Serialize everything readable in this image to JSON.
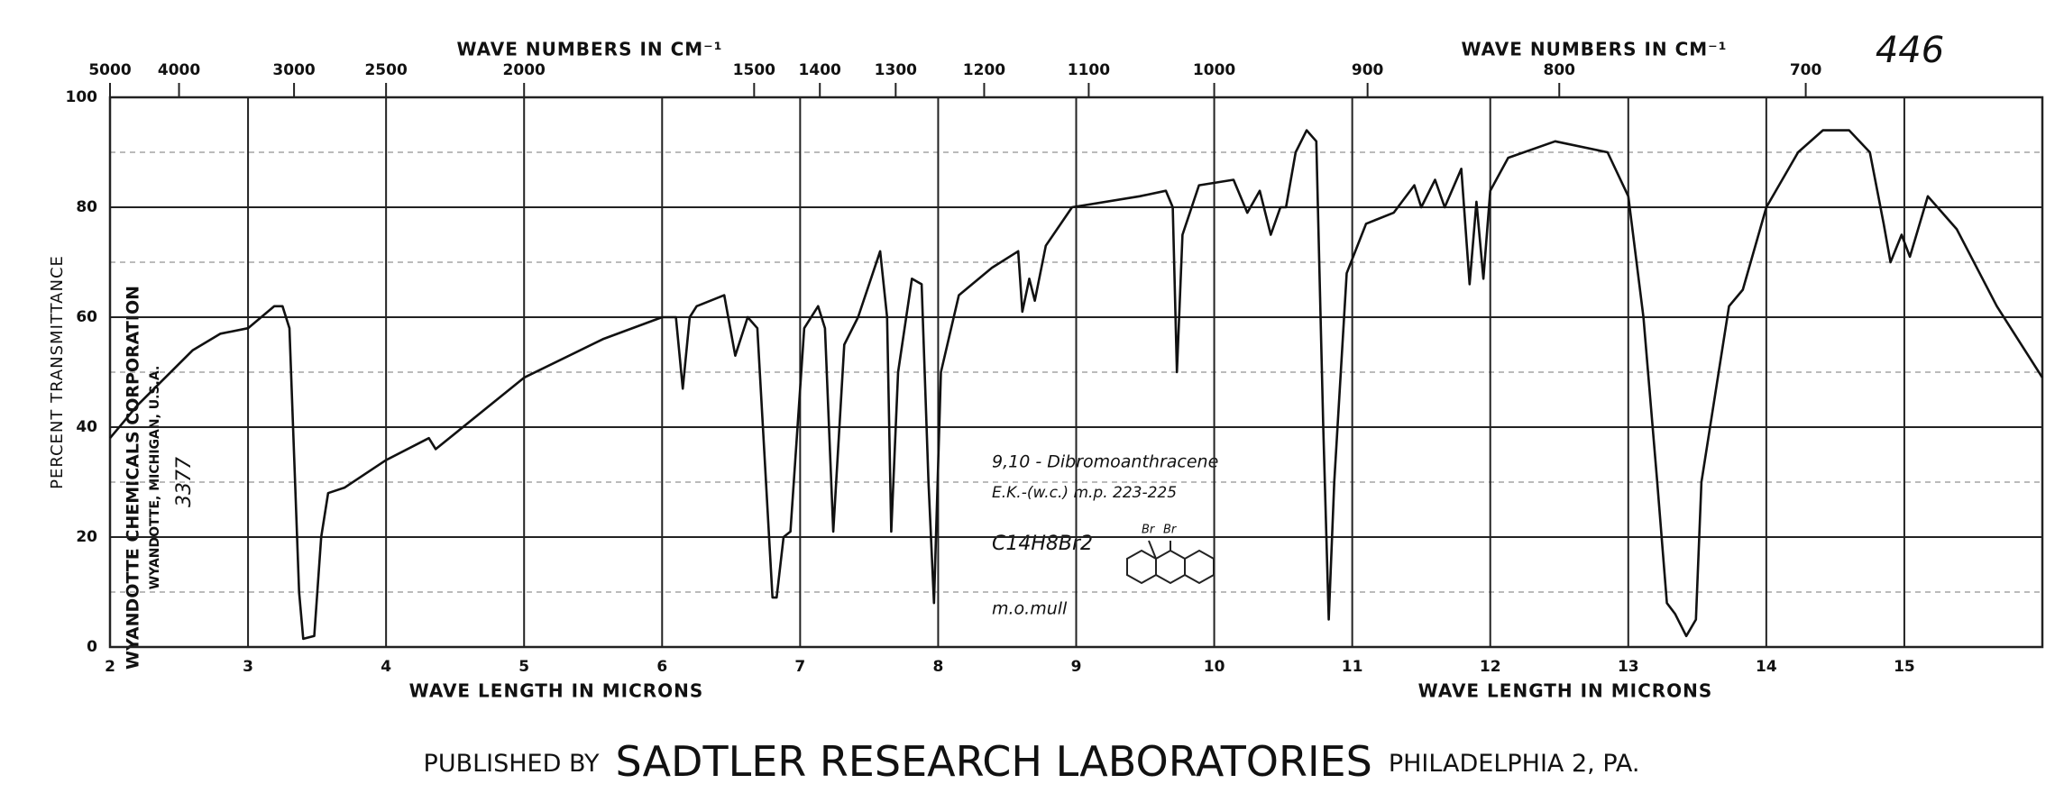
{
  "chart_data": {
    "type": "line",
    "page_number": "446",
    "x_label": "WAVE LENGTH IN MICRONS",
    "x_label_right": "WAVE LENGTH IN MICRONS",
    "x2_label": "WAVE NUMBERS IN CM⁻¹",
    "x2_label_right": "WAVE NUMBERS IN CM⁻¹",
    "y_label": "PERCENT TRANSMITTANCE",
    "stamp": [
      "WYANDOTTE CHEMICALS CORPORATION",
      "WYANDOTTE, MICHIGAN, U.S.A.",
      "3377"
    ],
    "annotation": [
      "9,10 - Dibromoanthracene",
      "E.K.-(w.c.) m.p. 223-225",
      "C14H8Br2",
      "m.o.mull"
    ],
    "structure_labels": [
      "Br",
      "Br"
    ],
    "footer": [
      "PUBLISHED BY",
      "SADTLER RESEARCH LABORATORIES",
      "PHILADELPHIA 2, PA."
    ],
    "color": "#111111",
    "grid": true,
    "xlim": [
      2,
      16
    ],
    "ylim": [
      0,
      100
    ],
    "xticks": [
      2,
      3,
      4,
      5,
      6,
      7,
      8,
      9,
      10,
      11,
      12,
      13,
      14,
      15
    ],
    "yticks": [
      0,
      20,
      40,
      60,
      80,
      100
    ],
    "yminorticks": [
      10,
      30,
      50,
      70,
      90
    ],
    "x2ticks": [
      5000,
      4000,
      3000,
      2500,
      2000,
      1500,
      1400,
      1300,
      1200,
      1100,
      1000,
      900,
      800,
      700
    ],
    "x": [
      2.0,
      2.2,
      2.4,
      2.6,
      2.8,
      3.0,
      3.19,
      3.25,
      3.3,
      3.37,
      3.4,
      3.48,
      3.53,
      3.58,
      3.7,
      4.0,
      4.31,
      4.36,
      5.0,
      5.57,
      6.0,
      6.1,
      6.15,
      6.2,
      6.25,
      6.45,
      6.53,
      6.62,
      6.69,
      6.8,
      6.83,
      6.88,
      6.93,
      7.03,
      7.13,
      7.18,
      7.24,
      7.32,
      7.42,
      7.58,
      7.63,
      7.66,
      7.71,
      7.81,
      7.88,
      7.93,
      7.97,
      8.02,
      8.15,
      8.39,
      8.58,
      8.61,
      8.66,
      8.7,
      8.78,
      8.97,
      9.46,
      9.65,
      9.7,
      9.73,
      9.77,
      9.89,
      10.14,
      10.24,
      10.33,
      10.41,
      10.48,
      10.52,
      10.59,
      10.67,
      10.74,
      10.79,
      10.83,
      10.87,
      10.96,
      11.1,
      11.3,
      11.45,
      11.5,
      11.6,
      11.67,
      11.79,
      11.85,
      11.9,
      11.95,
      12.0,
      12.13,
      12.47,
      12.85,
      13.0,
      13.11,
      13.21,
      13.28,
      13.34,
      13.42,
      13.49,
      13.53,
      13.73,
      13.83,
      14.0,
      14.23,
      14.41,
      14.6,
      14.75,
      14.85,
      14.9,
      14.98,
      15.04,
      15.17,
      15.38,
      15.67,
      16.0
    ],
    "values": [
      38,
      44,
      49,
      54,
      57,
      58,
      62,
      62,
      58,
      10,
      1.5,
      2,
      20,
      28,
      29,
      34,
      38,
      36,
      49,
      56,
      60,
      60,
      47,
      60,
      62,
      64,
      53,
      60,
      58,
      9,
      9,
      20,
      21,
      58,
      62,
      58,
      21,
      55,
      60,
      72,
      60,
      21,
      50,
      67,
      66,
      30,
      8,
      50,
      64,
      69,
      72,
      61,
      67,
      63,
      73,
      80,
      82,
      83,
      80,
      50,
      75,
      84,
      85,
      79,
      83,
      75,
      80,
      80,
      90,
      94,
      92,
      40,
      5,
      30,
      68,
      77,
      79,
      84,
      80,
      85,
      80,
      87,
      66,
      81,
      67,
      83,
      89,
      92,
      90,
      82,
      60,
      30,
      8,
      6,
      2,
      5,
      30,
      62,
      65,
      80,
      90,
      94,
      94,
      90,
      77,
      70,
      75,
      71,
      82,
      76,
      62,
      49
    ]
  }
}
